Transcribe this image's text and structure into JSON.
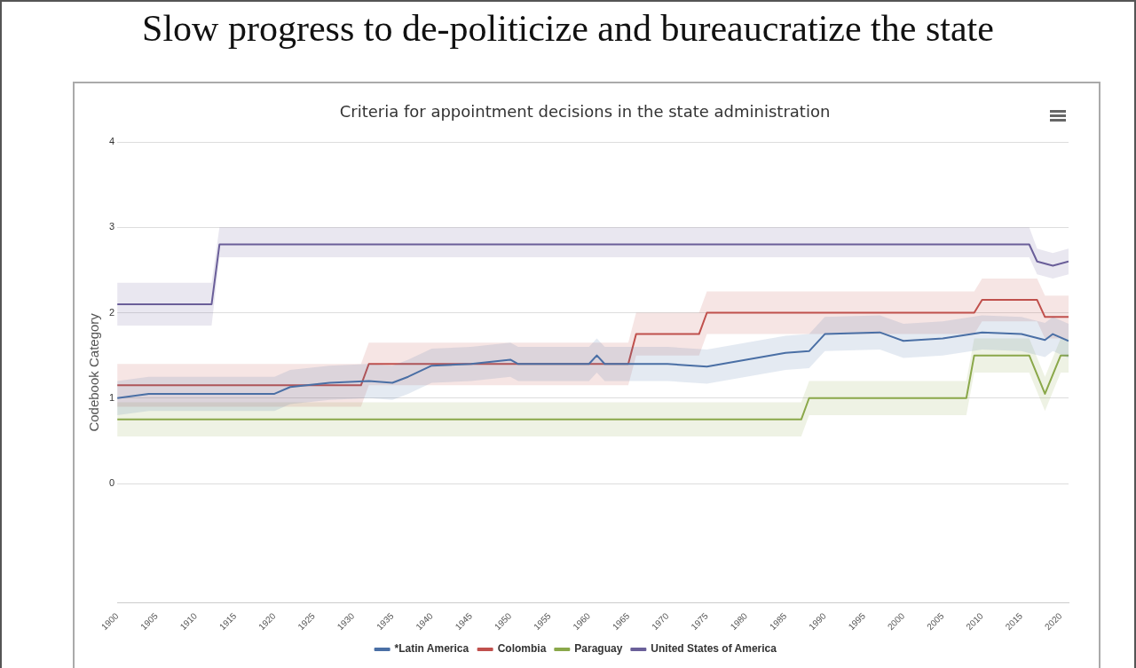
{
  "chart_data": {
    "type": "line",
    "title": "Slow progress to de-politicize and bureaucratize the state",
    "subtitle": "Criteria for appointment decisions in the state administration",
    "ylabel": "Codebook Category",
    "xlim": [
      1900,
      2021
    ],
    "xticks": [
      1900,
      1905,
      1910,
      1915,
      1920,
      1925,
      1930,
      1935,
      1940,
      1945,
      1950,
      1955,
      1960,
      1965,
      1970,
      1975,
      1980,
      1985,
      1990,
      1995,
      2000,
      2005,
      2010,
      2015,
      2020
    ],
    "ylim": [
      -1.4,
      4
    ],
    "yticks": [
      0,
      1,
      2,
      3,
      4
    ],
    "grid": "y",
    "legend": "bottom",
    "marker": "none",
    "line_style": "solid",
    "series": [
      {
        "name": "*Latin America",
        "color": "#4a6fa5",
        "x": [
          1900,
          1904,
          1920,
          1922,
          1927,
          1932,
          1935,
          1937,
          1940,
          1945,
          1950,
          1951,
          1955,
          1960,
          1961,
          1962,
          1965,
          1970,
          1975,
          1980,
          1985,
          1988,
          1990,
          1997,
          2000,
          2005,
          2010,
          2015,
          2018,
          2019,
          2021
        ],
        "values": [
          1.0,
          1.05,
          1.05,
          1.13,
          1.18,
          1.2,
          1.18,
          1.25,
          1.38,
          1.4,
          1.45,
          1.4,
          1.4,
          1.4,
          1.5,
          1.4,
          1.4,
          1.4,
          1.37,
          1.45,
          1.53,
          1.55,
          1.75,
          1.77,
          1.67,
          1.7,
          1.77,
          1.75,
          1.68,
          1.75,
          1.67
        ],
        "lower": [
          0.8,
          0.85,
          0.85,
          0.93,
          0.98,
          1.0,
          0.98,
          1.05,
          1.18,
          1.2,
          1.25,
          1.2,
          1.2,
          1.2,
          1.3,
          1.2,
          1.2,
          1.2,
          1.17,
          1.25,
          1.33,
          1.35,
          1.55,
          1.57,
          1.47,
          1.5,
          1.57,
          1.55,
          1.48,
          1.55,
          1.47
        ],
        "upper": [
          1.2,
          1.25,
          1.25,
          1.33,
          1.38,
          1.4,
          1.38,
          1.45,
          1.58,
          1.6,
          1.65,
          1.6,
          1.6,
          1.6,
          1.7,
          1.6,
          1.6,
          1.6,
          1.57,
          1.65,
          1.73,
          1.75,
          1.95,
          1.97,
          1.87,
          1.9,
          1.97,
          1.95,
          1.88,
          1.95,
          1.87
        ]
      },
      {
        "name": "Colombia",
        "color": "#c0504d",
        "x": [
          1900,
          1931,
          1932,
          1965,
          1966,
          1974,
          1975,
          2009,
          2010,
          2017,
          2018,
          2021
        ],
        "values": [
          1.15,
          1.15,
          1.4,
          1.4,
          1.75,
          1.75,
          2.0,
          2.0,
          2.15,
          2.15,
          1.95,
          1.95
        ],
        "lower": [
          0.9,
          0.9,
          1.15,
          1.15,
          1.5,
          1.5,
          1.75,
          1.75,
          1.9,
          1.9,
          1.7,
          1.7
        ],
        "upper": [
          1.4,
          1.4,
          1.65,
          1.65,
          2.0,
          2.0,
          2.25,
          2.25,
          2.4,
          2.4,
          2.2,
          2.2
        ]
      },
      {
        "name": "Paraguay",
        "color": "#8aa84a",
        "x": [
          1900,
          1987,
          1988,
          2008,
          2009,
          2016,
          2018,
          2020,
          2021
        ],
        "values": [
          0.75,
          0.75,
          1.0,
          1.0,
          1.5,
          1.5,
          1.05,
          1.5,
          1.5
        ],
        "lower": [
          0.55,
          0.55,
          0.8,
          0.8,
          1.3,
          1.3,
          0.85,
          1.3,
          1.3
        ],
        "upper": [
          0.95,
          0.95,
          1.2,
          1.2,
          1.7,
          1.7,
          1.25,
          1.7,
          1.7
        ]
      },
      {
        "name": "United States of America",
        "color": "#6a5f99",
        "x": [
          1900,
          1912,
          1913,
          2016,
          2017,
          2019,
          2021
        ],
        "values": [
          2.1,
          2.1,
          2.8,
          2.8,
          2.6,
          2.55,
          2.6
        ],
        "lower": [
          1.85,
          1.85,
          2.65,
          2.65,
          2.45,
          2.4,
          2.45
        ],
        "upper": [
          2.35,
          2.35,
          3.0,
          3.0,
          2.75,
          2.7,
          2.75
        ]
      }
    ]
  }
}
